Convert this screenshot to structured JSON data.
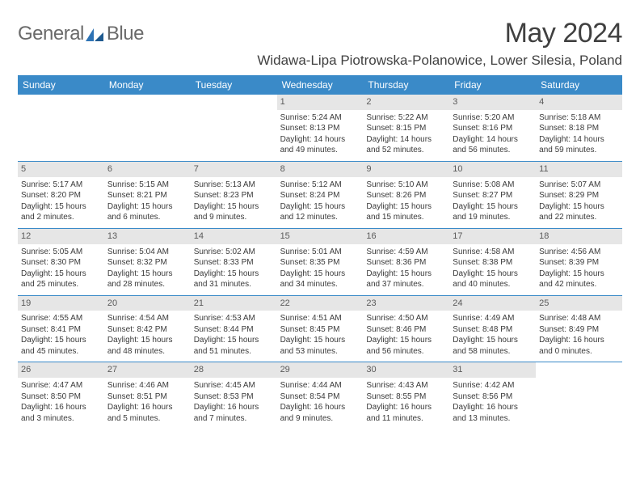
{
  "brand": {
    "word1": "General",
    "word2": "Blue"
  },
  "title": "May 2024",
  "location": "Widawa-Lipa Piotrowska-Polanowice, Lower Silesia, Poland",
  "colors": {
    "header_bg": "#3a8ac8",
    "header_text": "#ffffff",
    "daynum_bg": "#e6e6e6",
    "daynum_text": "#5a5a5a",
    "body_text": "#3a3a3a",
    "rule": "#3a8ac8",
    "title_text": "#404040",
    "logo_gray": "#6a6a6a",
    "logo_blue": "#2d73b5"
  },
  "typography": {
    "title_fontsize": 34,
    "location_fontsize": 17,
    "dow_fontsize": 12,
    "daynum_fontsize": 11,
    "cell_fontsize": 10
  },
  "days_of_week": [
    "Sunday",
    "Monday",
    "Tuesday",
    "Wednesday",
    "Thursday",
    "Friday",
    "Saturday"
  ],
  "weeks": [
    [
      {
        "n": "",
        "sr": "",
        "ss": "",
        "dl": ""
      },
      {
        "n": "",
        "sr": "",
        "ss": "",
        "dl": ""
      },
      {
        "n": "",
        "sr": "",
        "ss": "",
        "dl": ""
      },
      {
        "n": "1",
        "sr": "Sunrise: 5:24 AM",
        "ss": "Sunset: 8:13 PM",
        "dl": "Daylight: 14 hours and 49 minutes."
      },
      {
        "n": "2",
        "sr": "Sunrise: 5:22 AM",
        "ss": "Sunset: 8:15 PM",
        "dl": "Daylight: 14 hours and 52 minutes."
      },
      {
        "n": "3",
        "sr": "Sunrise: 5:20 AM",
        "ss": "Sunset: 8:16 PM",
        "dl": "Daylight: 14 hours and 56 minutes."
      },
      {
        "n": "4",
        "sr": "Sunrise: 5:18 AM",
        "ss": "Sunset: 8:18 PM",
        "dl": "Daylight: 14 hours and 59 minutes."
      }
    ],
    [
      {
        "n": "5",
        "sr": "Sunrise: 5:17 AM",
        "ss": "Sunset: 8:20 PM",
        "dl": "Daylight: 15 hours and 2 minutes."
      },
      {
        "n": "6",
        "sr": "Sunrise: 5:15 AM",
        "ss": "Sunset: 8:21 PM",
        "dl": "Daylight: 15 hours and 6 minutes."
      },
      {
        "n": "7",
        "sr": "Sunrise: 5:13 AM",
        "ss": "Sunset: 8:23 PM",
        "dl": "Daylight: 15 hours and 9 minutes."
      },
      {
        "n": "8",
        "sr": "Sunrise: 5:12 AM",
        "ss": "Sunset: 8:24 PM",
        "dl": "Daylight: 15 hours and 12 minutes."
      },
      {
        "n": "9",
        "sr": "Sunrise: 5:10 AM",
        "ss": "Sunset: 8:26 PM",
        "dl": "Daylight: 15 hours and 15 minutes."
      },
      {
        "n": "10",
        "sr": "Sunrise: 5:08 AM",
        "ss": "Sunset: 8:27 PM",
        "dl": "Daylight: 15 hours and 19 minutes."
      },
      {
        "n": "11",
        "sr": "Sunrise: 5:07 AM",
        "ss": "Sunset: 8:29 PM",
        "dl": "Daylight: 15 hours and 22 minutes."
      }
    ],
    [
      {
        "n": "12",
        "sr": "Sunrise: 5:05 AM",
        "ss": "Sunset: 8:30 PM",
        "dl": "Daylight: 15 hours and 25 minutes."
      },
      {
        "n": "13",
        "sr": "Sunrise: 5:04 AM",
        "ss": "Sunset: 8:32 PM",
        "dl": "Daylight: 15 hours and 28 minutes."
      },
      {
        "n": "14",
        "sr": "Sunrise: 5:02 AM",
        "ss": "Sunset: 8:33 PM",
        "dl": "Daylight: 15 hours and 31 minutes."
      },
      {
        "n": "15",
        "sr": "Sunrise: 5:01 AM",
        "ss": "Sunset: 8:35 PM",
        "dl": "Daylight: 15 hours and 34 minutes."
      },
      {
        "n": "16",
        "sr": "Sunrise: 4:59 AM",
        "ss": "Sunset: 8:36 PM",
        "dl": "Daylight: 15 hours and 37 minutes."
      },
      {
        "n": "17",
        "sr": "Sunrise: 4:58 AM",
        "ss": "Sunset: 8:38 PM",
        "dl": "Daylight: 15 hours and 40 minutes."
      },
      {
        "n": "18",
        "sr": "Sunrise: 4:56 AM",
        "ss": "Sunset: 8:39 PM",
        "dl": "Daylight: 15 hours and 42 minutes."
      }
    ],
    [
      {
        "n": "19",
        "sr": "Sunrise: 4:55 AM",
        "ss": "Sunset: 8:41 PM",
        "dl": "Daylight: 15 hours and 45 minutes."
      },
      {
        "n": "20",
        "sr": "Sunrise: 4:54 AM",
        "ss": "Sunset: 8:42 PM",
        "dl": "Daylight: 15 hours and 48 minutes."
      },
      {
        "n": "21",
        "sr": "Sunrise: 4:53 AM",
        "ss": "Sunset: 8:44 PM",
        "dl": "Daylight: 15 hours and 51 minutes."
      },
      {
        "n": "22",
        "sr": "Sunrise: 4:51 AM",
        "ss": "Sunset: 8:45 PM",
        "dl": "Daylight: 15 hours and 53 minutes."
      },
      {
        "n": "23",
        "sr": "Sunrise: 4:50 AM",
        "ss": "Sunset: 8:46 PM",
        "dl": "Daylight: 15 hours and 56 minutes."
      },
      {
        "n": "24",
        "sr": "Sunrise: 4:49 AM",
        "ss": "Sunset: 8:48 PM",
        "dl": "Daylight: 15 hours and 58 minutes."
      },
      {
        "n": "25",
        "sr": "Sunrise: 4:48 AM",
        "ss": "Sunset: 8:49 PM",
        "dl": "Daylight: 16 hours and 0 minutes."
      }
    ],
    [
      {
        "n": "26",
        "sr": "Sunrise: 4:47 AM",
        "ss": "Sunset: 8:50 PM",
        "dl": "Daylight: 16 hours and 3 minutes."
      },
      {
        "n": "27",
        "sr": "Sunrise: 4:46 AM",
        "ss": "Sunset: 8:51 PM",
        "dl": "Daylight: 16 hours and 5 minutes."
      },
      {
        "n": "28",
        "sr": "Sunrise: 4:45 AM",
        "ss": "Sunset: 8:53 PM",
        "dl": "Daylight: 16 hours and 7 minutes."
      },
      {
        "n": "29",
        "sr": "Sunrise: 4:44 AM",
        "ss": "Sunset: 8:54 PM",
        "dl": "Daylight: 16 hours and 9 minutes."
      },
      {
        "n": "30",
        "sr": "Sunrise: 4:43 AM",
        "ss": "Sunset: 8:55 PM",
        "dl": "Daylight: 16 hours and 11 minutes."
      },
      {
        "n": "31",
        "sr": "Sunrise: 4:42 AM",
        "ss": "Sunset: 8:56 PM",
        "dl": "Daylight: 16 hours and 13 minutes."
      },
      {
        "n": "",
        "sr": "",
        "ss": "",
        "dl": ""
      }
    ]
  ]
}
